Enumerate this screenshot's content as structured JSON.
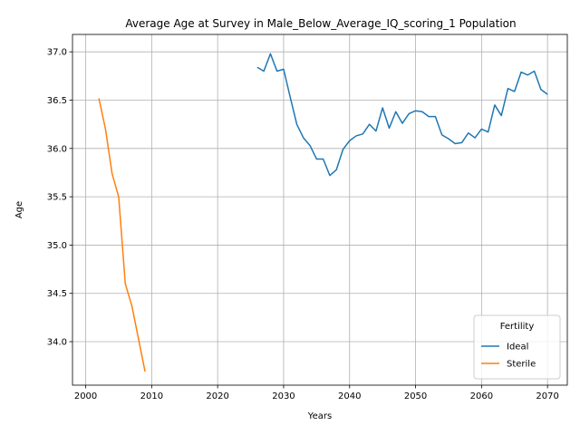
{
  "chart_data": {
    "type": "line",
    "title": "Average Age at Survey in Male_Below_Average_IQ_scoring_1 Population",
    "xlabel": "Years",
    "ylabel": "Age",
    "xlim": [
      1998,
      2073
    ],
    "ylim": [
      33.55,
      37.18
    ],
    "xticks": [
      2000,
      2010,
      2020,
      2030,
      2040,
      2050,
      2060,
      2070
    ],
    "yticks": [
      34.0,
      34.5,
      35.0,
      35.5,
      36.0,
      36.5,
      37.0
    ],
    "xtick_labels": [
      "2000",
      "2010",
      "2020",
      "2030",
      "2040",
      "2050",
      "2060",
      "2070"
    ],
    "ytick_labels": [
      "34.0",
      "34.5",
      "35.0",
      "35.5",
      "36.0",
      "36.5",
      "37.0"
    ],
    "grid": true,
    "legend": {
      "title": "Fertility",
      "placement": "lower-right"
    },
    "series": [
      {
        "name": "Ideal",
        "color": "#1f77b4",
        "x": [
          2026,
          2027,
          2028,
          2029,
          2030,
          2031,
          2032,
          2033,
          2034,
          2035,
          2036,
          2037,
          2038,
          2039,
          2040,
          2041,
          2042,
          2043,
          2044,
          2045,
          2046,
          2047,
          2048,
          2049,
          2050,
          2051,
          2052,
          2053,
          2054,
          2055,
          2056,
          2057,
          2058,
          2059,
          2060,
          2061,
          2062,
          2063,
          2064,
          2065,
          2066,
          2067,
          2068,
          2069,
          2070
        ],
        "values": [
          36.84,
          36.8,
          36.98,
          36.8,
          36.82,
          36.53,
          36.25,
          36.11,
          36.03,
          35.89,
          35.89,
          35.72,
          35.78,
          35.99,
          36.08,
          36.13,
          36.15,
          36.25,
          36.18,
          36.42,
          36.21,
          36.38,
          36.26,
          36.36,
          36.39,
          36.38,
          36.33,
          36.33,
          36.14,
          36.1,
          36.05,
          36.06,
          36.16,
          36.11,
          36.2,
          36.17,
          36.45,
          36.34,
          36.62,
          36.59,
          36.79,
          36.76,
          36.8,
          36.61,
          36.56
        ]
      },
      {
        "name": "Sterile",
        "color": "#ff7f0e",
        "x": [
          2002,
          2003,
          2004,
          2005,
          2006,
          2007,
          2008,
          2009
        ],
        "values": [
          36.52,
          36.2,
          35.74,
          35.5,
          34.6,
          34.37,
          34.03,
          33.69
        ]
      }
    ]
  }
}
